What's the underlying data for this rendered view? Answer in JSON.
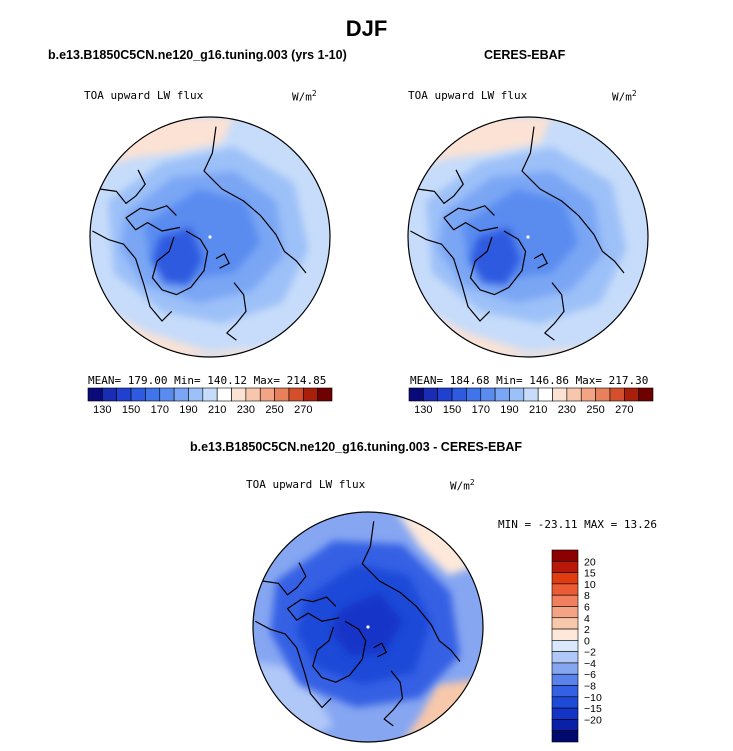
{
  "figure_title": "DJF",
  "panels": {
    "model": {
      "title": "b.e13.B1850C5CN.ne120_g16.tuning.003 (yrs 1-10)",
      "variable": "TOA upward LW flux",
      "units": "W/m",
      "units_sup": "2",
      "stats": {
        "mean": 179.0,
        "min": 140.12,
        "max": 214.85
      },
      "stats_text": "MEAN= 179.00   Min= 140.12   Max= 214.85"
    },
    "obs": {
      "title": "CERES-EBAF",
      "variable": "TOA upward LW flux",
      "units": "W/m",
      "units_sup": "2",
      "stats": {
        "mean": 184.68,
        "min": 146.86,
        "max": 217.3
      },
      "stats_text": "MEAN= 184.68   Min= 146.86   Max= 217.30"
    },
    "diff": {
      "title": "b.e13.B1850C5CN.ne120_g16.tuning.003 - CERES-EBAF",
      "variable": "TOA upward LW flux",
      "units": "W/m",
      "units_sup": "2",
      "stats": {
        "min": -23.11,
        "max": 13.26
      },
      "stats_text": "MIN = -23.11  MAX =  13.26"
    }
  },
  "chart_data": [
    {
      "type": "heatmap",
      "projection": "north-polar-stereographic",
      "title": "b.e13.B1850C5CN.ne120_g16.tuning.003 (yrs 1-10)",
      "variable": "TOA upward LW flux",
      "units": "W/m2",
      "colorbar": {
        "orientation": "horizontal",
        "levels": [
          130,
          140,
          150,
          160,
          170,
          180,
          190,
          200,
          210,
          220,
          230,
          240,
          250,
          260,
          270
        ],
        "tick_labels": [
          "130",
          "150",
          "170",
          "190",
          "210",
          "230",
          "250",
          "270"
        ],
        "colors": [
          "#0a0a7a",
          "#1a2cb4",
          "#2040d0",
          "#2d5ae0",
          "#3f74ea",
          "#5a8cf0",
          "#7aa6f4",
          "#9cc0f8",
          "#c6dcfa",
          "#ffffff",
          "#fbe2d4",
          "#f8c6ac",
          "#f2a484",
          "#e8805c",
          "#d4502c",
          "#a8200c",
          "#6e0000"
        ]
      },
      "stats": {
        "mean": 179.0,
        "min": 140.12,
        "max": 214.85
      }
    },
    {
      "type": "heatmap",
      "projection": "north-polar-stereographic",
      "title": "CERES-EBAF",
      "variable": "TOA upward LW flux",
      "units": "W/m2",
      "colorbar": {
        "orientation": "horizontal",
        "levels": [
          130,
          140,
          150,
          160,
          170,
          180,
          190,
          200,
          210,
          220,
          230,
          240,
          250,
          260,
          270
        ],
        "tick_labels": [
          "130",
          "150",
          "170",
          "190",
          "210",
          "230",
          "250",
          "270"
        ]
      },
      "stats": {
        "mean": 184.68,
        "min": 146.86,
        "max": 217.3
      }
    },
    {
      "type": "heatmap",
      "projection": "north-polar-stereographic",
      "title": "b.e13.B1850C5CN.ne120_g16.tuning.003 - CERES-EBAF",
      "variable": "TOA upward LW flux",
      "units": "W/m2",
      "colorbar": {
        "orientation": "vertical",
        "levels": [
          -20,
          -15,
          -10,
          -8,
          -6,
          -4,
          -2,
          0,
          2,
          4,
          6,
          8,
          10,
          15,
          20
        ],
        "tick_labels": [
          "20",
          "15",
          "10",
          "8",
          "6",
          "4",
          "2",
          "0",
          "−2",
          "−4",
          "−6",
          "−8",
          "−10",
          "−15",
          "−20"
        ],
        "colors": [
          "#000a6e",
          "#0a20a6",
          "#1434c8",
          "#1e4ad8",
          "#3460e4",
          "#5a82ec",
          "#86a6f2",
          "#b0c8f8",
          "#dae8fc",
          "#fde8da",
          "#f8c8aa",
          "#f4a484",
          "#f08060",
          "#ec5c34",
          "#e03c10",
          "#b8180a",
          "#8c0000"
        ]
      },
      "stats": {
        "min": -23.11,
        "max": 13.26
      }
    }
  ]
}
